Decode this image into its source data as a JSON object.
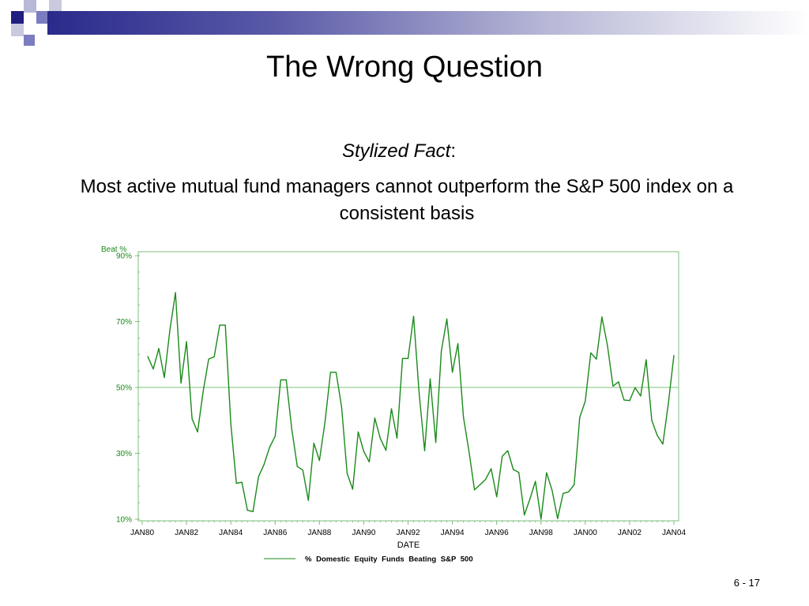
{
  "slide": {
    "title": "The Wrong Question",
    "fact_label": "Stylized Fact",
    "fact_colon": ":",
    "fact_text": "Most active mutual fund managers cannot outperform the S&P 500 index on a consistent basis",
    "page_number": "6 - 17"
  },
  "colors": {
    "band_dark": "#1f1f80",
    "band_mid": "#7c7cc0",
    "band_light": "#b8b8d8",
    "line": "#1a8a1a",
    "axis": "#7fbf7f"
  },
  "chart_data": {
    "type": "line",
    "title": "",
    "ylabel": "Beat %",
    "xlabel": "DATE",
    "ylim": [
      10,
      90
    ],
    "xlim": [
      1980,
      2004
    ],
    "grid": false,
    "reference_line_y": 50,
    "y_ticks": [
      {
        "value": 10,
        "label": "10%"
      },
      {
        "value": 30,
        "label": "30%"
      },
      {
        "value": 50,
        "label": "50%"
      },
      {
        "value": 70,
        "label": "70%"
      },
      {
        "value": 90,
        "label": "90%"
      }
    ],
    "x_ticks": [
      {
        "value": 1980,
        "label": "JAN80"
      },
      {
        "value": 1982,
        "label": "JAN82"
      },
      {
        "value": 1984,
        "label": "JAN84"
      },
      {
        "value": 1986,
        "label": "JAN86"
      },
      {
        "value": 1988,
        "label": "JAN88"
      },
      {
        "value": 1990,
        "label": "JAN90"
      },
      {
        "value": 1992,
        "label": "JAN92"
      },
      {
        "value": 1994,
        "label": "JAN94"
      },
      {
        "value": 1996,
        "label": "JAN96"
      },
      {
        "value": 1998,
        "label": "JAN98"
      },
      {
        "value": 2000,
        "label": "JAN00"
      },
      {
        "value": 2002,
        "label": "JAN02"
      },
      {
        "value": 2004,
        "label": "JAN04"
      }
    ],
    "legend_position": "bottom-center",
    "series": [
      {
        "name": "% Domestic Equity Funds Beating S&P 500",
        "x": [
          1980.25,
          1980.5,
          1980.75,
          1981.0,
          1981.25,
          1981.5,
          1981.75,
          1982.0,
          1982.25,
          1982.5,
          1982.75,
          1983.0,
          1983.25,
          1983.5,
          1983.75,
          1984.0,
          1984.25,
          1984.5,
          1984.75,
          1985.0,
          1985.25,
          1985.5,
          1985.75,
          1986.0,
          1986.25,
          1986.5,
          1986.75,
          1987.0,
          1987.25,
          1987.5,
          1987.75,
          1988.0,
          1988.25,
          1988.5,
          1988.75,
          1989.0,
          1989.25,
          1989.5,
          1989.75,
          1990.0,
          1990.25,
          1990.5,
          1990.75,
          1991.0,
          1991.25,
          1991.5,
          1991.75,
          1992.0,
          1992.25,
          1992.5,
          1992.75,
          1993.0,
          1993.25,
          1993.5,
          1993.75,
          1994.0,
          1994.25,
          1994.5,
          1994.75,
          1995.0,
          1995.25,
          1995.5,
          1995.75,
          1996.0,
          1996.25,
          1996.5,
          1996.75,
          1997.0,
          1997.25,
          1997.5,
          1997.75,
          1998.0,
          1998.25,
          1998.5,
          1998.75,
          1999.0,
          1999.25,
          1999.5,
          1999.75,
          2000.0,
          2000.25,
          2000.5,
          2000.75,
          2001.0,
          2001.25,
          2001.5,
          2001.75,
          2002.0,
          2002.25,
          2002.5,
          2002.75,
          2003.0,
          2003.25,
          2003.5,
          2003.75,
          2004.0
        ],
        "values": [
          59.4,
          55.6,
          61.8,
          53.0,
          67.5,
          78.8,
          51.3,
          63.9,
          40.5,
          36.5,
          48.7,
          58.6,
          59.3,
          68.9,
          68.9,
          38.9,
          20.9,
          21.2,
          12.7,
          12.3,
          22.9,
          26.6,
          31.8,
          35.2,
          52.3,
          52.3,
          37.4,
          26.0,
          24.9,
          15.7,
          33.1,
          27.8,
          39.4,
          54.6,
          54.6,
          44.0,
          23.9,
          19.1,
          36.5,
          30.6,
          27.4,
          40.7,
          34.5,
          30.9,
          43.5,
          34.6,
          58.8,
          58.8,
          71.6,
          48.3,
          30.8,
          52.6,
          33.3,
          61.0,
          70.8,
          54.6,
          63.3,
          41.0,
          30.6,
          18.9,
          20.5,
          22.1,
          25.3,
          16.8,
          29.1,
          30.8,
          25.1,
          24.2,
          11.3,
          16.1,
          21.5,
          10.0,
          24.1,
          18.8,
          10.2,
          17.8,
          18.3,
          20.5,
          40.9,
          45.8,
          60.5,
          58.6,
          71.4,
          62.7,
          50.4,
          51.7,
          46.2,
          46.0,
          49.9,
          47.4,
          58.4,
          40.0,
          35.4,
          32.8,
          45.2,
          59.7
        ]
      }
    ]
  }
}
